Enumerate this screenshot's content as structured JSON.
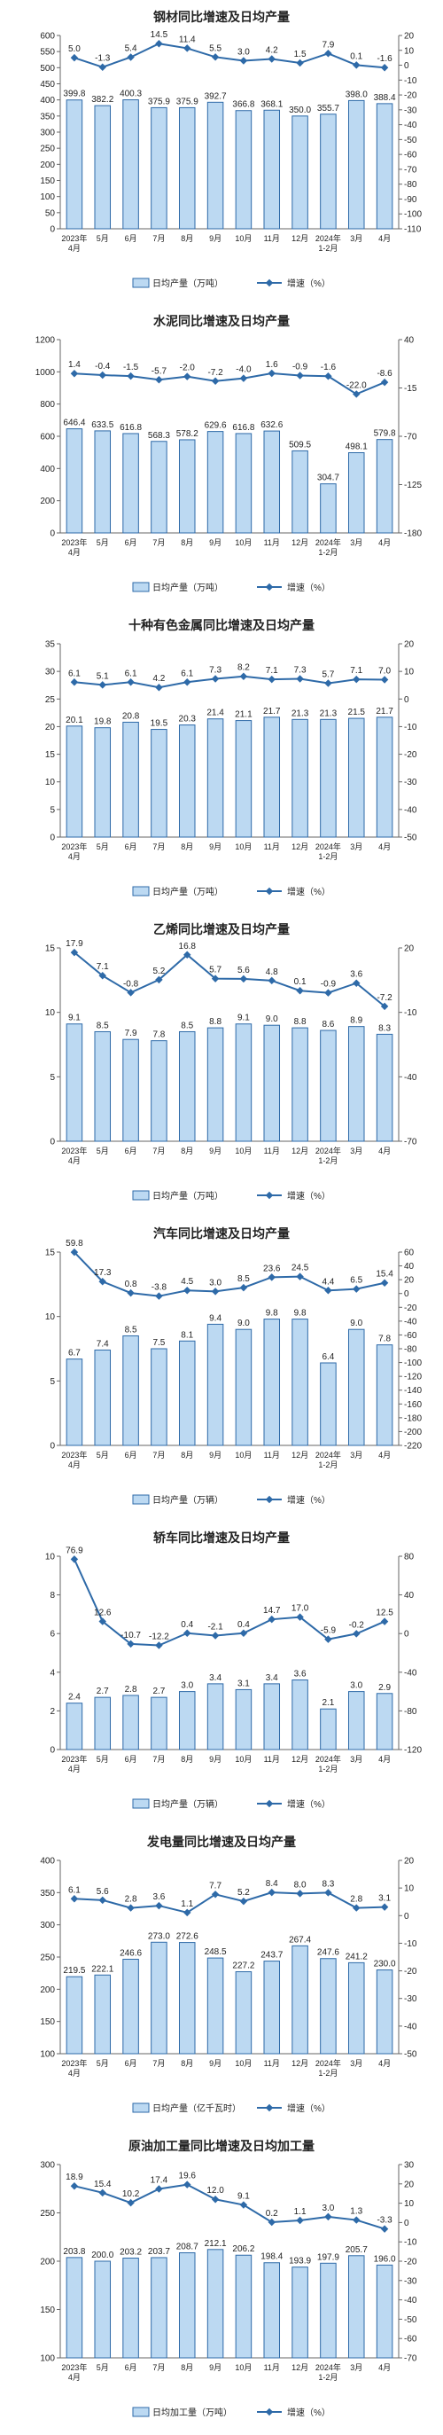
{
  "colors": {
    "bar_fill": "#bcd9f2",
    "bar_stroke": "#2e6aa8",
    "line": "#2e6aa8",
    "axis": "#666666",
    "text": "#222222"
  },
  "chart_data": [
    {
      "type": "bar",
      "title": "钢材同比增速及日均产量",
      "categories": [
        "2023年\n4月",
        "5月",
        "6月",
        "7月",
        "8月",
        "9月",
        "10月",
        "11月",
        "12月",
        "2024年\n1-2月",
        "3月",
        "4月"
      ],
      "series": [
        {
          "name": "日均产量（万吨）",
          "axis": "left",
          "type": "bar",
          "values": [
            399.8,
            382.2,
            400.3,
            375.9,
            375.9,
            392.7,
            366.8,
            368.1,
            350.0,
            355.7,
            398.0,
            388.4
          ]
        },
        {
          "name": "增速（%）",
          "axis": "right",
          "type": "line",
          "values": [
            5.0,
            -1.3,
            5.4,
            14.5,
            11.4,
            5.5,
            3.0,
            4.2,
            1.5,
            7.9,
            0.1,
            -1.6
          ]
        }
      ],
      "left_axis": {
        "min": 0,
        "max": 600,
        "ticks": [
          0,
          50,
          100,
          150,
          200,
          250,
          300,
          350,
          400,
          450,
          500,
          550,
          600
        ]
      },
      "right_axis": {
        "min": -110,
        "max": 20,
        "ticks": [
          20,
          10,
          0,
          -10,
          -20,
          -30,
          -40,
          -50,
          -60,
          -70,
          -80,
          -90,
          -100,
          -110
        ]
      }
    },
    {
      "type": "bar",
      "title": "水泥同比增速及日均产量",
      "categories": [
        "2023年\n4月",
        "5月",
        "6月",
        "7月",
        "8月",
        "9月",
        "10月",
        "11月",
        "12月",
        "2024年\n1-2月",
        "3月",
        "4月"
      ],
      "series": [
        {
          "name": "日均产量（万吨）",
          "axis": "left",
          "type": "bar",
          "values": [
            646.4,
            633.5,
            616.8,
            568.3,
            578.2,
            629.6,
            616.8,
            632.6,
            509.5,
            304.7,
            498.1,
            579.8
          ]
        },
        {
          "name": "增速（%）",
          "axis": "right",
          "type": "line",
          "values": [
            1.4,
            -0.4,
            -1.5,
            -5.7,
            -2.0,
            -7.2,
            -4.0,
            1.6,
            -0.9,
            -1.6,
            -22.0,
            -8.6
          ]
        }
      ],
      "left_axis": {
        "min": 0,
        "max": 1200,
        "ticks": [
          0,
          200,
          400,
          600,
          800,
          1000,
          1200
        ]
      },
      "right_axis": {
        "min": -180,
        "max": 40,
        "ticks": [
          40,
          -15,
          -70,
          -125,
          -180
        ]
      }
    },
    {
      "type": "bar",
      "title": "十种有色金属同比增速及日均产量",
      "categories": [
        "2023年\n4月",
        "5月",
        "6月",
        "7月",
        "8月",
        "9月",
        "10月",
        "11月",
        "12月",
        "2024年\n1-2月",
        "3月",
        "4月"
      ],
      "series": [
        {
          "name": "日均产量（万吨）",
          "axis": "left",
          "type": "bar",
          "values": [
            20.1,
            19.8,
            20.8,
            19.5,
            20.3,
            21.4,
            21.1,
            21.7,
            21.3,
            21.3,
            21.5,
            21.7
          ]
        },
        {
          "name": "增速（%）",
          "axis": "right",
          "type": "line",
          "values": [
            6.1,
            5.1,
            6.1,
            4.2,
            6.1,
            7.3,
            8.2,
            7.1,
            7.3,
            5.7,
            7.1,
            7.0
          ]
        }
      ],
      "left_axis": {
        "min": 0,
        "max": 35,
        "ticks": [
          0,
          5,
          10,
          15,
          20,
          25,
          30,
          35
        ]
      },
      "right_axis": {
        "min": -50,
        "max": 20,
        "ticks": [
          20,
          10,
          0,
          -10,
          -20,
          -30,
          -40,
          -50
        ]
      }
    },
    {
      "type": "bar",
      "title": "乙烯同比增速及日均产量",
      "categories": [
        "2023年\n4月",
        "5月",
        "6月",
        "7月",
        "8月",
        "9月",
        "10月",
        "11月",
        "12月",
        "2024年\n1-2月",
        "3月",
        "4月"
      ],
      "series": [
        {
          "name": "日均产量（万吨）",
          "axis": "left",
          "type": "bar",
          "values": [
            9.1,
            8.5,
            7.9,
            7.8,
            8.5,
            8.8,
            9.1,
            9.0,
            8.8,
            8.6,
            8.9,
            8.3
          ]
        },
        {
          "name": "增速（%）",
          "axis": "right",
          "type": "line",
          "values": [
            17.9,
            7.1,
            -0.8,
            5.2,
            16.8,
            5.7,
            5.6,
            4.8,
            0.1,
            -0.9,
            3.6,
            -7.2
          ]
        }
      ],
      "left_axis": {
        "min": 0,
        "max": 15,
        "ticks": [
          0,
          5,
          10,
          15
        ]
      },
      "right_axis": {
        "min": -70,
        "max": 20,
        "ticks": [
          20,
          -10,
          -40,
          -70
        ]
      }
    },
    {
      "type": "bar",
      "title": "汽车同比增速及日均产量",
      "categories": [
        "2023年\n4月",
        "5月",
        "6月",
        "7月",
        "8月",
        "9月",
        "10月",
        "11月",
        "12月",
        "2024年\n1-2月",
        "3月",
        "4月"
      ],
      "series": [
        {
          "name": "日均产量（万辆）",
          "axis": "left",
          "type": "bar",
          "values": [
            6.7,
            7.4,
            8.5,
            7.5,
            8.1,
            9.4,
            9.0,
            9.8,
            9.8,
            6.4,
            9.0,
            7.8
          ]
        },
        {
          "name": "增速（%）",
          "axis": "right",
          "type": "line",
          "values": [
            59.8,
            17.3,
            0.8,
            -3.8,
            4.5,
            3.0,
            8.5,
            23.6,
            24.5,
            4.4,
            6.5,
            15.4
          ]
        }
      ],
      "left_axis": {
        "min": 0,
        "max": 15,
        "ticks": [
          0,
          5,
          10,
          15
        ]
      },
      "right_axis": {
        "min": -220,
        "max": 60,
        "ticks": [
          60,
          40,
          20,
          0,
          -20,
          -40,
          -60,
          -80,
          -100,
          -120,
          -140,
          -160,
          -180,
          -200,
          -220
        ]
      }
    },
    {
      "type": "bar",
      "title": "轿车同比增速及日均产量",
      "categories": [
        "2023年\n4月",
        "5月",
        "6月",
        "7月",
        "8月",
        "9月",
        "10月",
        "11月",
        "12月",
        "2024年\n1-2月",
        "3月",
        "4月"
      ],
      "series": [
        {
          "name": "日均产量（万辆）",
          "axis": "left",
          "type": "bar",
          "values": [
            2.4,
            2.7,
            2.8,
            2.7,
            3.0,
            3.4,
            3.1,
            3.4,
            3.6,
            2.1,
            3.0,
            2.9
          ]
        },
        {
          "name": "增速（%）",
          "axis": "right",
          "type": "line",
          "values": [
            76.9,
            12.6,
            -10.7,
            -12.2,
            0.4,
            -2.1,
            0.4,
            14.7,
            17.0,
            -5.9,
            -0.2,
            12.5
          ]
        }
      ],
      "left_axis": {
        "min": 0,
        "max": 10,
        "ticks": [
          0,
          2,
          4,
          6,
          8,
          10
        ]
      },
      "right_axis": {
        "min": -120,
        "max": 80,
        "ticks": [
          80,
          40,
          0,
          -40,
          -80,
          -120
        ]
      }
    },
    {
      "type": "bar",
      "title": "发电量同比增速及日均产量",
      "categories": [
        "2023年\n4月",
        "5月",
        "6月",
        "7月",
        "8月",
        "9月",
        "10月",
        "11月",
        "12月",
        "2024年\n1-2月",
        "3月",
        "4月"
      ],
      "series": [
        {
          "name": "日均产量（亿千瓦时）",
          "axis": "left",
          "type": "bar",
          "values": [
            219.5,
            222.1,
            246.6,
            273.0,
            272.6,
            248.5,
            227.2,
            243.7,
            267.4,
            247.6,
            241.2,
            230.0
          ]
        },
        {
          "name": "增速（%）",
          "axis": "right",
          "type": "line",
          "values": [
            6.1,
            5.6,
            2.8,
            3.6,
            1.1,
            7.7,
            5.2,
            8.4,
            8.0,
            8.3,
            2.8,
            3.1
          ]
        }
      ],
      "left_axis": {
        "min": 100,
        "max": 400,
        "ticks": [
          100,
          150,
          200,
          250,
          300,
          350,
          400
        ]
      },
      "right_axis": {
        "min": -50,
        "max": 20,
        "ticks": [
          20,
          10,
          0,
          -10,
          -20,
          -30,
          -40,
          -50
        ]
      }
    },
    {
      "type": "bar",
      "title": "原油加工量同比增速及日均加工量",
      "categories": [
        "2023年\n4月",
        "5月",
        "6月",
        "7月",
        "8月",
        "9月",
        "10月",
        "11月",
        "12月",
        "2024年\n1-2月",
        "3月",
        "4月"
      ],
      "series": [
        {
          "name": "日均加工量（万吨）",
          "axis": "left",
          "type": "bar",
          "values": [
            203.8,
            200.0,
            203.2,
            203.7,
            208.7,
            212.1,
            206.2,
            198.4,
            193.9,
            197.9,
            205.7,
            196.0
          ]
        },
        {
          "name": "增速（%）",
          "axis": "right",
          "type": "line",
          "values": [
            18.9,
            15.4,
            10.2,
            17.4,
            19.6,
            12.0,
            9.1,
            0.2,
            1.1,
            3.0,
            1.3,
            -3.3
          ]
        }
      ],
      "left_axis": {
        "min": 100,
        "max": 300,
        "ticks": [
          100,
          150,
          200,
          250,
          300
        ]
      },
      "right_axis": {
        "min": -70,
        "max": 30,
        "ticks": [
          30,
          20,
          10,
          0,
          -10,
          -20,
          -30,
          -40,
          -50,
          -60,
          -70
        ]
      }
    }
  ]
}
